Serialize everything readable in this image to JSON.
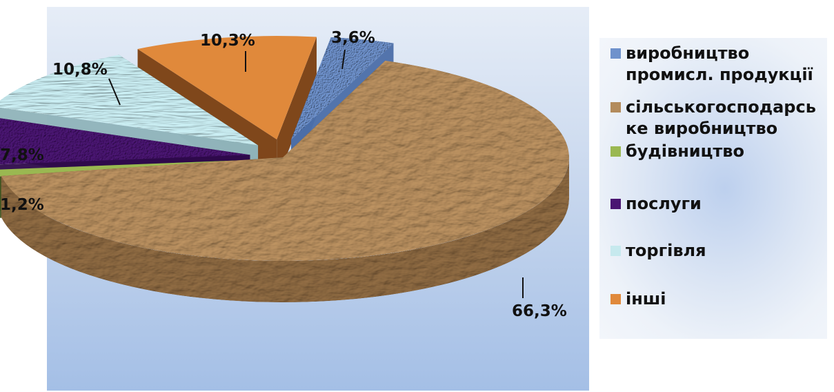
{
  "chart_data": {
    "type": "pie",
    "style": "3d-exploded",
    "title": "",
    "slices": [
      {
        "label": "виробництво\nпромисл. продукції",
        "value": 3.6,
        "display": "3,6%",
        "color": "#6f92cc",
        "side_color": "#4b6ea8",
        "icon": "blue-mosaic-texture"
      },
      {
        "label": "сільськогосподарсь\nке виробництво",
        "value": 66.3,
        "display": "66,3%",
        "color": "#b38b5c",
        "side_color": "#8a6740",
        "icon": "crumpled-paper-texture"
      },
      {
        "label": "будівництво",
        "value": 1.2,
        "display": "1,2%",
        "color": "#9ab851",
        "side_color": "#3f5521",
        "icon": "green-square"
      },
      {
        "label": "послуги",
        "value": 7.8,
        "display": "7,8%",
        "color": "#4a1572",
        "side_color": "#2e0a4b",
        "icon": "purple-texture"
      },
      {
        "label": "торгівля",
        "value": 10.8,
        "display": "10,8%",
        "color": "#c6e9ee",
        "side_color": "#8fb3b9",
        "icon": "aqua-water-texture"
      },
      {
        "label": "інші",
        "value": 10.3,
        "display": "10,3%",
        "color": "#e0893b",
        "side_color": "#7a3e0f",
        "icon": "orange-square"
      }
    ],
    "legend": "right",
    "data_labels": "percent"
  }
}
